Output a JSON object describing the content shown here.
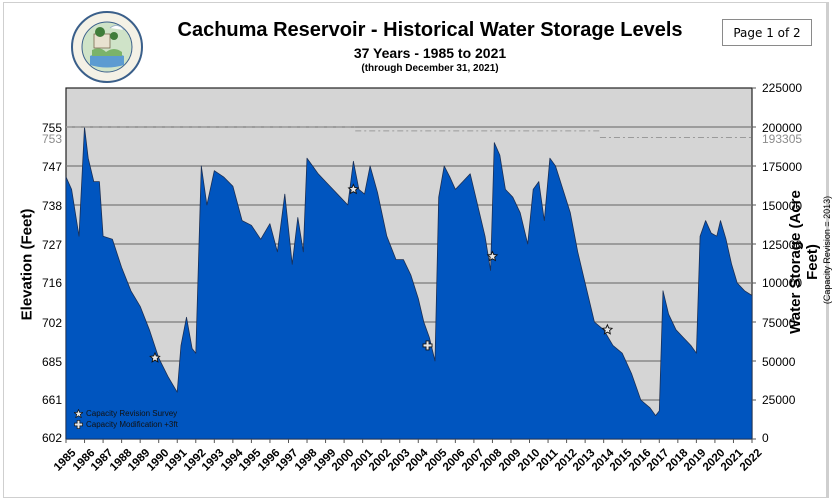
{
  "header": {
    "title": "Cachuma Reservoir - Historical Water Storage Levels",
    "subtitle": "37 Years - 1985 to 2021",
    "subtitle_note": "(through December 31, 2021)",
    "page_badge": "Page 1 of 2",
    "logo": {
      "name": "santa-barbara-county-water-resources-seal",
      "text_top": "SANTA BARBARA COUNTY",
      "text_bottom": "WATER RESOURCES"
    }
  },
  "colors": {
    "fill": "#0055bf",
    "plot_bg": "#d5d5d5",
    "grid": "#7a7a7a",
    "capacity_line": "#9a9a9a"
  },
  "legend": {
    "items": [
      {
        "icon": "star-icon",
        "label": "Capacity Revision Survey"
      },
      {
        "icon": "cross-icon",
        "label": "Capacity Modification +3ft"
      }
    ]
  },
  "axes": {
    "left_label": "Elevation (Feet)",
    "right_label": "Water Storage (Acre Feet)",
    "right_note": "(Capacity Revision = 2013)",
    "left_ticks": [
      "755",
      "753",
      "747",
      "738",
      "727",
      "716",
      "702",
      "685",
      "661",
      "602"
    ],
    "right_ticks": [
      "225000",
      "200000",
      "193305",
      "175000",
      "150000",
      "125000",
      "100000",
      "75000",
      "50000",
      "25000",
      "0"
    ],
    "x_ticks": [
      "1985",
      "1986",
      "1987",
      "1988",
      "1989",
      "1990",
      "1991",
      "1992",
      "1993",
      "1994",
      "1995",
      "1996",
      "1997",
      "1998",
      "1999",
      "2000",
      "2001",
      "2002",
      "2003",
      "2004",
      "2005",
      "2006",
      "2007",
      "2008",
      "2009",
      "2010",
      "2011",
      "2012",
      "2013",
      "2014",
      "2015",
      "2016",
      "2017",
      "2018",
      "2019",
      "2020",
      "2021",
      "2022"
    ]
  },
  "chart_data": {
    "type": "area",
    "title": "Cachuma Reservoir - Historical Water Storage Levels",
    "subtitle": "37 Years - 1985 to 2021 (through December 31, 2021)",
    "xlabel": "",
    "ylabel": "Water Storage (Acre Feet)",
    "ylabel_secondary": "Elevation (Feet)",
    "ylim": [
      0,
      225000
    ],
    "grid": true,
    "legend_position": "lower-left inside",
    "x": [
      1985.0,
      1985.3,
      1985.7,
      1986.0,
      1986.2,
      1986.5,
      1986.8,
      1987.0,
      1987.5,
      1988.0,
      1988.5,
      1989.0,
      1989.5,
      1990.0,
      1990.5,
      1991.0,
      1991.2,
      1991.5,
      1991.8,
      1992.0,
      1992.3,
      1992.6,
      1993.0,
      1993.5,
      1994.0,
      1994.5,
      1995.0,
      1995.5,
      1996.0,
      1996.4,
      1996.8,
      1997.2,
      1997.5,
      1997.8,
      1998.0,
      1998.3,
      1998.6,
      1999.0,
      1999.4,
      1999.8,
      2000.2,
      2000.5,
      2000.8,
      2001.1,
      2001.4,
      2001.8,
      2002.3,
      2002.8,
      2003.2,
      2003.6,
      2004.0,
      2004.3,
      2004.6,
      2004.9,
      2005.1,
      2005.4,
      2005.7,
      2006.0,
      2006.4,
      2006.8,
      2007.2,
      2007.6,
      2007.9,
      2008.1,
      2008.4,
      2008.7,
      2009.1,
      2009.5,
      2009.9,
      2010.2,
      2010.5,
      2010.8,
      2011.1,
      2011.4,
      2011.8,
      2012.2,
      2012.6,
      2013.0,
      2013.5,
      2014.0,
      2014.5,
      2015.0,
      2015.5,
      2016.0,
      2016.5,
      2016.8,
      2017.0,
      2017.2,
      2017.5,
      2017.9,
      2018.3,
      2018.7,
      2019.0,
      2019.2,
      2019.5,
      2019.8,
      2020.1,
      2020.3,
      2020.6,
      2020.9,
      2021.2,
      2021.6,
      2022.0
    ],
    "series": [
      {
        "name": "Water Storage (Acre Feet)",
        "values": [
          168000,
          160000,
          130000,
          200000,
          180000,
          165000,
          165000,
          130000,
          128000,
          110000,
          95000,
          85000,
          70000,
          52000,
          40000,
          30000,
          60000,
          78000,
          58000,
          55000,
          175000,
          150000,
          172000,
          168000,
          162000,
          140000,
          137000,
          128000,
          138000,
          120000,
          157000,
          112000,
          142000,
          120000,
          180000,
          175000,
          170000,
          165000,
          160000,
          155000,
          150000,
          178000,
          160000,
          157000,
          175000,
          158000,
          130000,
          115000,
          115000,
          105000,
          90000,
          75000,
          65000,
          50000,
          155000,
          175000,
          168000,
          160000,
          165000,
          170000,
          150000,
          130000,
          108000,
          190000,
          182000,
          160000,
          155000,
          145000,
          125000,
          160000,
          165000,
          140000,
          180000,
          175000,
          160000,
          145000,
          120000,
          100000,
          75000,
          70000,
          60000,
          55000,
          42000,
          25000,
          20000,
          15000,
          18000,
          95000,
          80000,
          70000,
          65000,
          60000,
          55000,
          130000,
          140000,
          132000,
          130000,
          140000,
          128000,
          112000,
          100000,
          95000,
          92000
        ]
      }
    ],
    "reference_lines": [
      {
        "label": "200000 / 755 ft (pre-2013 capacity)",
        "value": 200000,
        "style": "dashed"
      },
      {
        "label": "193305 / 753 ft (2013 capacity revision)",
        "value": 193305,
        "style": "dash-dot"
      }
    ],
    "annotations": [
      {
        "type": "star",
        "label": "Capacity Revision Survey",
        "x": 1989.8,
        "y": 52000
      },
      {
        "type": "star",
        "label": "Capacity Revision Survey",
        "x": 2000.5,
        "y": 160000
      },
      {
        "type": "star",
        "label": "Capacity Revision Survey",
        "x": 2008.0,
        "y": 117000
      },
      {
        "type": "star",
        "label": "Capacity Revision Survey",
        "x": 2014.2,
        "y": 70000
      },
      {
        "type": "cross",
        "label": "Capacity Modification +3ft",
        "x": 2004.5,
        "y": 60000
      }
    ]
  }
}
